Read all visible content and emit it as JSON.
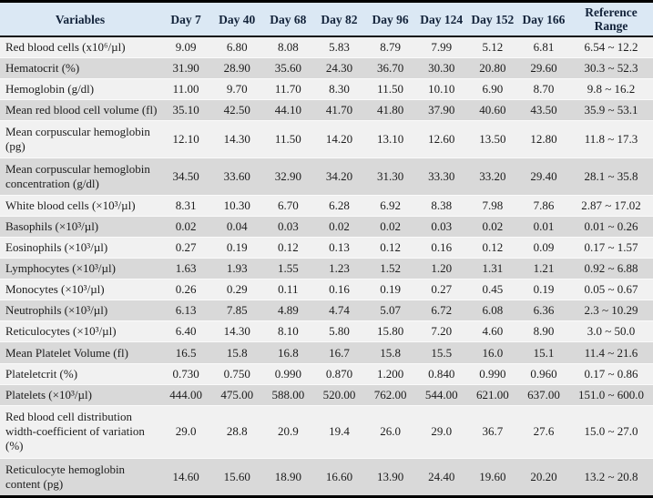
{
  "colors": {
    "header_background": "#dbe8f4",
    "header_text": "#13233a",
    "row_light": "#f1f1f1",
    "row_dark": "#d9d9d9",
    "frame_border": "#000000"
  },
  "table": {
    "columns": [
      "Variables",
      "Day 7",
      "Day 40",
      "Day 68",
      "Day 82",
      "Day 96",
      "Day 124",
      "Day 152",
      "Day 166",
      "Reference Range"
    ],
    "rows": [
      {
        "variable": "Red blood cells (x10⁶/µl)",
        "values": [
          "9.09",
          "6.80",
          "8.08",
          "5.83",
          "8.79",
          "7.99",
          "5.12",
          "6.81"
        ],
        "reference_range": "6.54 ~ 12.2"
      },
      {
        "variable": "Hematocrit (%)",
        "values": [
          "31.90",
          "28.90",
          "35.60",
          "24.30",
          "36.70",
          "30.30",
          "20.80",
          "29.60"
        ],
        "reference_range": "30.3 ~ 52.3"
      },
      {
        "variable": "Hemoglobin (g/dl)",
        "values": [
          "11.00",
          "9.70",
          "11.70",
          "8.30",
          "11.50",
          "10.10",
          "6.90",
          "8.70"
        ],
        "reference_range": "9.8 ~ 16.2"
      },
      {
        "variable": "Mean red blood cell volume (fl)",
        "values": [
          "35.10",
          "42.50",
          "44.10",
          "41.70",
          "41.80",
          "37.90",
          "40.60",
          "43.50"
        ],
        "reference_range": "35.9 ~ 53.1"
      },
      {
        "variable": "Mean corpuscular hemoglobin (pg)",
        "values": [
          "12.10",
          "14.30",
          "11.50",
          "14.20",
          "13.10",
          "12.60",
          "13.50",
          "12.80"
        ],
        "reference_range": "11.8 ~ 17.3"
      },
      {
        "variable": "Mean corpuscular hemoglobin concentration (g/dl)",
        "values": [
          "34.50",
          "33.60",
          "32.90",
          "34.20",
          "31.30",
          "33.30",
          "33.20",
          "29.40"
        ],
        "reference_range": "28.1 ~ 35.8"
      },
      {
        "variable": "White blood cells (×10³/µl)",
        "values": [
          "8.31",
          "10.30",
          "6.70",
          "6.28",
          "6.92",
          "8.38",
          "7.98",
          "7.86"
        ],
        "reference_range": "2.87 ~ 17.02"
      },
      {
        "variable": "Basophils (×10³/µl)",
        "values": [
          "0.02",
          "0.04",
          "0.03",
          "0.02",
          "0.02",
          "0.03",
          "0.02",
          "0.01"
        ],
        "reference_range": "0.01 ~ 0.26"
      },
      {
        "variable": "Eosinophils (×10³/µl)",
        "values": [
          "0.27",
          "0.19",
          "0.12",
          "0.13",
          "0.12",
          "0.16",
          "0.12",
          "0.09"
        ],
        "reference_range": "0.17 ~ 1.57"
      },
      {
        "variable": "Lymphocytes (×10³/µl)",
        "values": [
          "1.63",
          "1.93",
          "1.55",
          "1.23",
          "1.52",
          "1.20",
          "1.31",
          "1.21"
        ],
        "reference_range": "0.92 ~ 6.88"
      },
      {
        "variable": "Monocytes (×10³/µl)",
        "values": [
          "0.26",
          "0.29",
          "0.11",
          "0.16",
          "0.19",
          "0.27",
          "0.45",
          "0.19"
        ],
        "reference_range": "0.05 ~ 0.67"
      },
      {
        "variable": "Neutrophils (×10³/µl)",
        "values": [
          "6.13",
          "7.85",
          "4.89",
          "4.74",
          "5.07",
          "6.72",
          "6.08",
          "6.36"
        ],
        "reference_range": "2.3 ~ 10.29"
      },
      {
        "variable": "Reticulocytes (×10³/µl)",
        "values": [
          "6.40",
          "14.30",
          "8.10",
          "5.80",
          "15.80",
          "7.20",
          "4.60",
          "8.90"
        ],
        "reference_range": "3.0 ~ 50.0"
      },
      {
        "variable": "Mean Platelet Volume (fl)",
        "values": [
          "16.5",
          "15.8",
          "16.8",
          "16.7",
          "15.8",
          "15.5",
          "16.0",
          "15.1"
        ],
        "reference_range": "11.4 ~ 21.6"
      },
      {
        "variable": "Plateletcrit (%)",
        "values": [
          "0.730",
          "0.750",
          "0.990",
          "0.870",
          "1.200",
          "0.840",
          "0.990",
          "0.960"
        ],
        "reference_range": "0.17 ~ 0.86"
      },
      {
        "variable": "Platelets (×10³/µl)",
        "values": [
          "444.00",
          "475.00",
          "588.00",
          "520.00",
          "762.00",
          "544.00",
          "621.00",
          "637.00"
        ],
        "reference_range": "151.0 ~ 600.0"
      },
      {
        "variable": "Red blood cell distribution width-coefficient of variation (%)",
        "values": [
          "29.0",
          "28.8",
          "20.9",
          "19.4",
          "26.0",
          "29.0",
          "36.7",
          "27.6"
        ],
        "reference_range": "15.0 ~ 27.0"
      },
      {
        "variable": "Reticulocyte hemoglobin content (pg)",
        "values": [
          "14.60",
          "15.60",
          "18.90",
          "16.60",
          "13.90",
          "24.40",
          "19.60",
          "20.20"
        ],
        "reference_range": "13.2 ~ 20.8"
      }
    ]
  }
}
